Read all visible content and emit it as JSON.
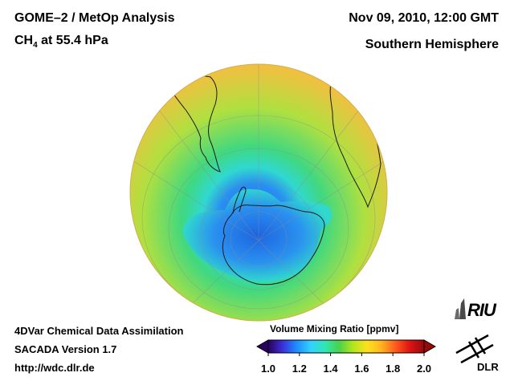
{
  "header": {
    "title": "GOME–2 / MetOp Analysis",
    "species_prefix": "CH",
    "species_sub": "4",
    "species_suffix": " at 55.4 hPa",
    "datetime": "Nov 09, 2010, 12:00 GMT",
    "region": "Southern Hemisphere"
  },
  "footer": {
    "line1": "4DVar Chemical Data Assimilation",
    "line2": "SACADA Version 1.7",
    "line3": "http://wdc.dlr.de"
  },
  "colorbar": {
    "title": "Volume Mixing Ratio [ppmv]",
    "ticks": [
      "1.0",
      "1.2",
      "1.4",
      "1.6",
      "1.8",
      "2.0"
    ],
    "range": [
      1.0,
      2.0
    ],
    "colors": [
      "#2a0060",
      "#3a2fd8",
      "#1f8cff",
      "#32d2ff",
      "#32e6b4",
      "#4ad24a",
      "#b4e61e",
      "#ffe01e",
      "#ffb41e",
      "#ff5a1e",
      "#dc1414",
      "#960a0a"
    ]
  },
  "map": {
    "projection": "orthographic",
    "center": "South Pole",
    "field_colors": {
      "background": "#f2d23c",
      "outer": "#f0c040",
      "mid": "#b0e040",
      "inner": "#40d880",
      "ring": "#30d8d0",
      "low": "#2a90f0",
      "minimum": "#1e64e0"
    }
  },
  "logos": {
    "riu": "RIU",
    "dlr": "DLR"
  }
}
